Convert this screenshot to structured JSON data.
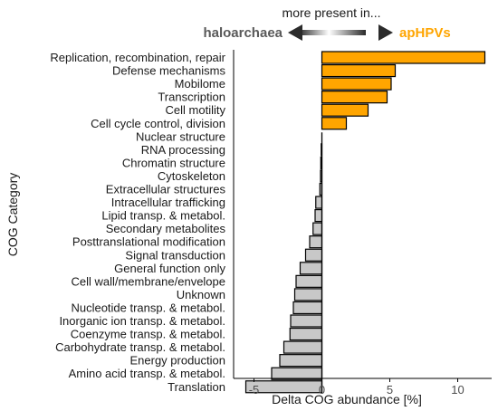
{
  "chart_data": {
    "type": "bar",
    "orientation": "horizontal",
    "categories": [
      "Replication, recombination, repair",
      "Defense mechanisms",
      "Mobilome",
      "Transcription",
      "Cell motility",
      "Cell cycle control, division",
      "Nuclear structure",
      "RNA processing",
      "Chromatin structure",
      "Cytoskeleton",
      "Extracellular structures",
      "Intracellular trafficking",
      "Lipid transp. & metabol.",
      "Secondary metabolites",
      "Posttranslational modification",
      "Signal transduction",
      "General function only",
      "Cell wall/membrane/envelope",
      "Unknown",
      "Nucleotide transp. & metabol.",
      "Inorganic ion transp. & metabol.",
      "Coenzyme transp. & metabol.",
      "Carbohydrate transp. & metabol.",
      "Energy production",
      "Amino acid transp. & metabol.",
      "Translation"
    ],
    "values": [
      12.0,
      5.4,
      5.1,
      4.8,
      3.4,
      1.8,
      0.0,
      -0.05,
      -0.08,
      -0.1,
      -0.15,
      -0.45,
      -0.5,
      -0.65,
      -0.9,
      -1.2,
      -1.6,
      -1.9,
      -2.0,
      -2.1,
      -2.3,
      -2.35,
      -2.8,
      -3.1,
      -3.7,
      -5.6
    ],
    "xlabel": "Delta COG abundance [%]",
    "ylabel": "COG Category",
    "xlim": [
      -6.5,
      12.5
    ],
    "xticks": [
      -5,
      0,
      5,
      10
    ],
    "grid": false,
    "positive_color": "#FFA500",
    "negative_color": "#C8C8C8",
    "bar_edge_color": "#000000",
    "annotation": {
      "title": "more present in...",
      "left_label": "haloarchaea",
      "right_label": "apHPVs",
      "left_color": "#595959",
      "right_color": "#FFA500"
    }
  }
}
